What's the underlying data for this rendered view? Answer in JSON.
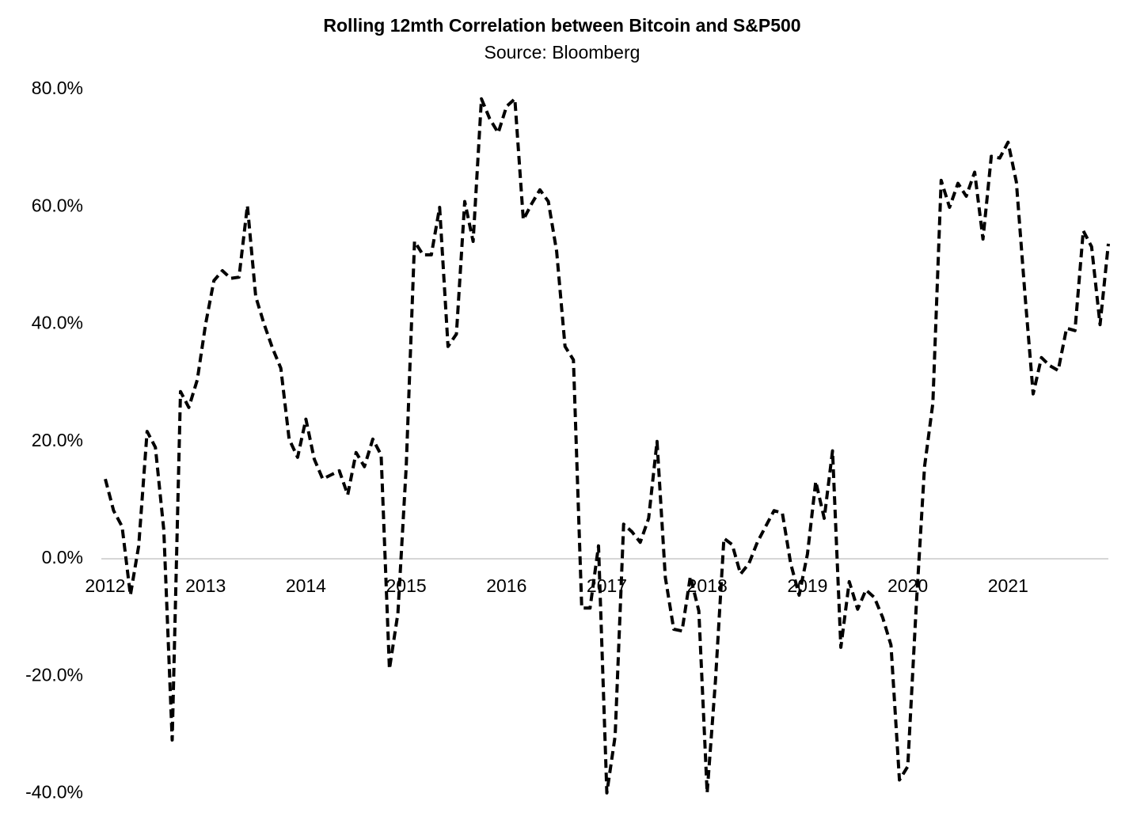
{
  "chart_data": {
    "type": "line",
    "title": "Rolling 12mth Correlation between Bitcoin and S&P500",
    "subtitle": "Source: Bloomberg",
    "color": "#000000",
    "line_style": "dashed",
    "grid": false,
    "x": [
      2012,
      2012.083,
      2012.167,
      2012.25,
      2012.333,
      2012.417,
      2012.5,
      2012.583,
      2012.667,
      2012.75,
      2012.833,
      2012.917,
      2013,
      2013.083,
      2013.167,
      2013.25,
      2013.333,
      2013.417,
      2013.5,
      2013.583,
      2013.667,
      2013.75,
      2013.833,
      2013.917,
      2014,
      2014.083,
      2014.167,
      2014.25,
      2014.333,
      2014.417,
      2014.5,
      2014.583,
      2014.667,
      2014.75,
      2014.833,
      2014.917,
      2015,
      2015.083,
      2015.167,
      2015.25,
      2015.333,
      2015.417,
      2015.5,
      2015.583,
      2015.667,
      2015.75,
      2015.833,
      2015.917,
      2016,
      2016.083,
      2016.167,
      2016.25,
      2016.333,
      2016.417,
      2016.5,
      2016.583,
      2016.667,
      2016.75,
      2016.833,
      2016.917,
      2017,
      2017.083,
      2017.167,
      2017.25,
      2017.333,
      2017.417,
      2017.5,
      2017.583,
      2017.667,
      2017.75,
      2017.833,
      2017.917,
      2018,
      2018.083,
      2018.167,
      2018.25,
      2018.333,
      2018.417,
      2018.5,
      2018.583,
      2018.667,
      2018.75,
      2018.833,
      2018.917,
      2019,
      2019.083,
      2019.167,
      2019.25,
      2019.333,
      2019.417,
      2019.5,
      2019.583,
      2019.667,
      2019.75,
      2019.833,
      2019.917,
      2020,
      2020.083,
      2020.167,
      2020.25,
      2020.333,
      2020.417,
      2020.5,
      2020.583,
      2020.667,
      2020.75,
      2020.833,
      2020.917,
      2021,
      2021.083,
      2021.167,
      2021.25,
      2021.333,
      2021.417,
      2021.5,
      2021.583,
      2021.667,
      2021.75,
      2021.833,
      2021.917,
      2022
    ],
    "values": [
      13.6,
      8.2,
      5.5,
      -6.2,
      2.2,
      21.7,
      19,
      4.9,
      -30.9,
      28.5,
      25.8,
      30.5,
      40,
      47.4,
      49.1,
      47.8,
      48,
      60.2,
      44.7,
      40,
      35.9,
      32.5,
      20.4,
      17.3,
      23.8,
      17,
      13.6,
      14.3,
      15,
      10.9,
      18.1,
      15.7,
      20.4,
      17.7,
      -18.8,
      -9.3,
      15.7,
      54.1,
      51.8,
      51.8,
      59.9,
      36.2,
      38.3,
      60.9,
      54.1,
      78.4,
      75,
      72.6,
      77.1,
      78.4,
      57.8,
      60.5,
      62.9,
      60.9,
      52.4,
      36.2,
      33.9,
      -8.4,
      -8.4,
      2.2,
      -39.9,
      -30.2,
      5.9,
      4.6,
      2.8,
      6.9,
      20,
      -3.2,
      -12,
      -12.3,
      -3,
      -8.9,
      -39.9,
      -20.8,
      3.5,
      2.4,
      -2.6,
      -0.8,
      2.8,
      5.5,
      8.2,
      7.8,
      -0.8,
      -6.2,
      0.8,
      13.2,
      6.9,
      18.4,
      -15.1,
      -3.9,
      -8.6,
      -5.3,
      -6.6,
      -10,
      -14.7,
      -37.7,
      -35.4,
      -8.6,
      15.7,
      26.5,
      64.5,
      59.9,
      64,
      61.8,
      65.9,
      54.5,
      68.6,
      68.3,
      71,
      64.2,
      45.3,
      28.1,
      34.3,
      32.9,
      32.1,
      39.3,
      38.9,
      55.9,
      53.2,
      39.9,
      53.7
    ],
    "xlim": [
      2012,
      2022
    ],
    "xticks": [
      2012,
      2013,
      2014,
      2015,
      2016,
      2017,
      2018,
      2019,
      2020,
      2021
    ],
    "ylim": [
      -40,
      80
    ],
    "yticks": [
      {
        "value": 80,
        "label": "80.0%"
      },
      {
        "value": 60,
        "label": "60.0%"
      },
      {
        "value": 40,
        "label": "40.0%"
      },
      {
        "value": 20,
        "label": "20.0%"
      },
      {
        "value": 0,
        "label": "0.0%"
      },
      {
        "value": -20,
        "label": "-20.0%"
      },
      {
        "value": -40,
        "label": "-40.0%"
      }
    ]
  }
}
